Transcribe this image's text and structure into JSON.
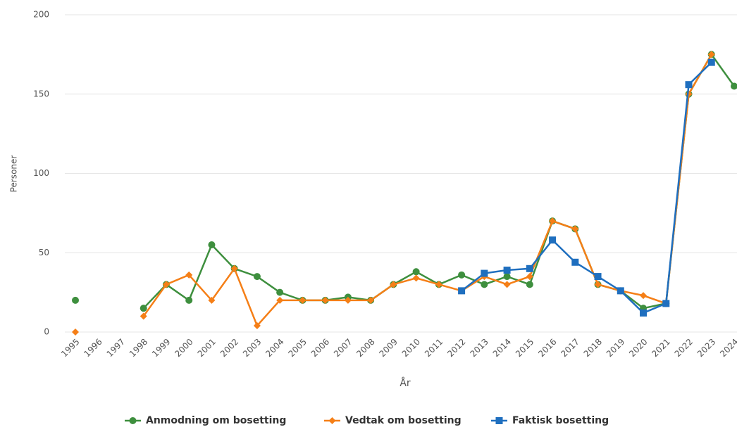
{
  "chart_data": {
    "type": "line",
    "xlabel": "År",
    "ylabel": "Personer",
    "categories": [
      "1995",
      "1996",
      "1997",
      "1998",
      "1999",
      "2000",
      "2001",
      "2002",
      "2003",
      "2004",
      "2005",
      "2006",
      "2007",
      "2008",
      "2009",
      "2010",
      "2011",
      "2012",
      "2013",
      "2014",
      "2015",
      "2016",
      "2017",
      "2018",
      "2019",
      "2020",
      "2021",
      "2022",
      "2023",
      "2024"
    ],
    "series": [
      {
        "name": "Anmodning om bosetting",
        "color": "#3e8f3e",
        "marker": "circle",
        "values": [
          20,
          null,
          null,
          15,
          30,
          20,
          55,
          40,
          35,
          25,
          20,
          20,
          22,
          20,
          30,
          38,
          30,
          36,
          30,
          35,
          30,
          70,
          65,
          30,
          26,
          15,
          18,
          150,
          175,
          155
        ]
      },
      {
        "name": "Vedtak om bosetting",
        "color": "#f57f17",
        "marker": "diamond",
        "values": [
          0,
          null,
          null,
          10,
          30,
          36,
          20,
          40,
          4,
          20,
          20,
          20,
          20,
          20,
          30,
          34,
          30,
          26,
          35,
          30,
          35,
          70,
          65,
          30,
          26,
          23,
          18,
          150,
          175,
          null
        ]
      },
      {
        "name": "Faktisk bosetting",
        "color": "#1f6fbf",
        "marker": "square",
        "values": [
          null,
          null,
          null,
          null,
          null,
          null,
          null,
          null,
          null,
          null,
          null,
          null,
          null,
          null,
          null,
          null,
          null,
          26,
          37,
          39,
          40,
          58,
          44,
          35,
          26,
          12,
          18,
          156,
          170,
          null
        ]
      }
    ],
    "ylim": [
      0,
      200
    ],
    "yticks": [
      0,
      50,
      100,
      150,
      200
    ],
    "grid": true
  }
}
